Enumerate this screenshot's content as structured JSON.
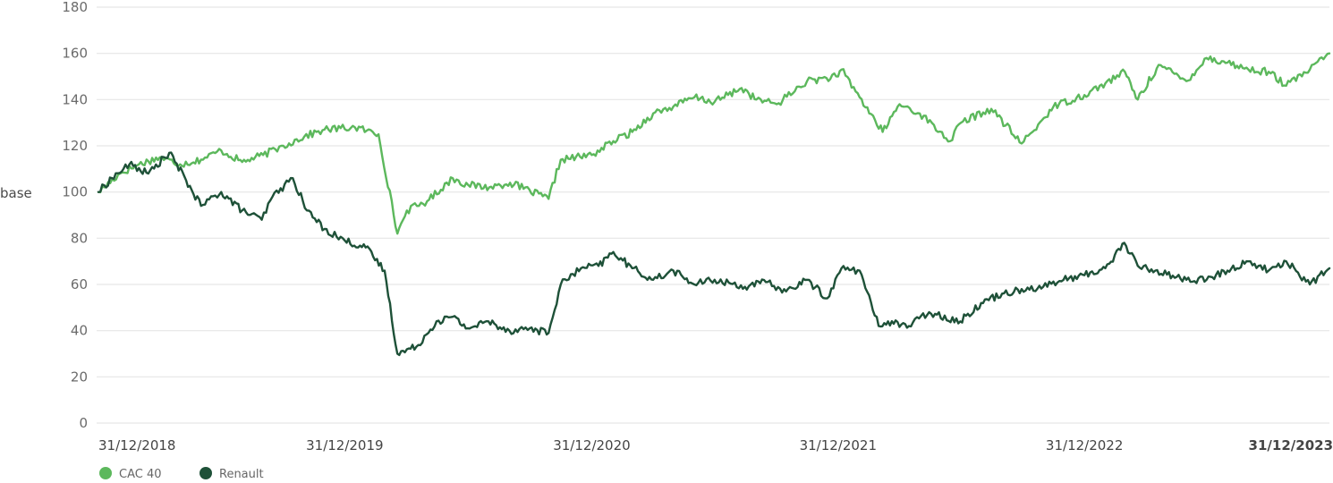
{
  "chart_data": {
    "type": "line",
    "ylabel": "base",
    "ylim": [
      0,
      180
    ],
    "yticks": [
      0,
      20,
      40,
      60,
      80,
      100,
      120,
      140,
      160,
      180
    ],
    "xticks": [
      "31/12/2018",
      "31/12/2019",
      "31/12/2020",
      "31/12/2021",
      "31/12/2022",
      "31/12/2023"
    ],
    "first_tick_color": "#7ac77a",
    "last_tick_bold": true,
    "grid": true,
    "legend_position": "bottom-left",
    "series": [
      {
        "name": "CAC 40",
        "color": "#5cb85c",
        "x": [
          "2018-12-31",
          "2019-02-01",
          "2019-03-01",
          "2019-04-01",
          "2019-05-01",
          "2019-06-01",
          "2019-07-01",
          "2019-08-01",
          "2019-09-01",
          "2019-10-01",
          "2019-11-01",
          "2019-12-01",
          "2020-01-15",
          "2020-02-19",
          "2020-03-18",
          "2020-04-01",
          "2020-05-01",
          "2020-06-08",
          "2020-07-01",
          "2020-08-01",
          "2020-09-01",
          "2020-10-28",
          "2020-11-15",
          "2020-12-31",
          "2021-02-01",
          "2021-03-01",
          "2021-04-01",
          "2021-05-01",
          "2021-06-01",
          "2021-07-01",
          "2021-08-10",
          "2021-09-01",
          "2021-10-01",
          "2021-11-15",
          "2021-12-31",
          "2022-01-05",
          "2022-02-01",
          "2022-03-07",
          "2022-04-01",
          "2022-05-01",
          "2022-06-15",
          "2022-07-01",
          "2022-08-15",
          "2022-09-29",
          "2022-10-15",
          "2022-11-15",
          "2022-12-31",
          "2023-01-31",
          "2023-03-01",
          "2023-03-20",
          "2023-04-20",
          "2023-05-31",
          "2023-06-30",
          "2023-07-31",
          "2023-08-31",
          "2023-09-30",
          "2023-10-26",
          "2023-11-30",
          "2023-12-29"
        ],
        "values": [
          100,
          108,
          112,
          115,
          112,
          114,
          118,
          113,
          116,
          120,
          124,
          127,
          128,
          125,
          82,
          92,
          96,
          106,
          103,
          102,
          104,
          97,
          114,
          116,
          122,
          126,
          134,
          137,
          141,
          139,
          145,
          140,
          138,
          148,
          150,
          153,
          141,
          126,
          138,
          134,
          122,
          130,
          136,
          121,
          126,
          137,
          142,
          147,
          152,
          140,
          155,
          148,
          158,
          156,
          153,
          152,
          146,
          153,
          160
        ]
      },
      {
        "name": "Renault",
        "color": "#1e5138",
        "x": [
          "2018-12-31",
          "2019-01-20",
          "2019-02-15",
          "2019-03-15",
          "2019-04-15",
          "2019-05-10",
          "2019-06-01",
          "2019-07-01",
          "2019-08-01",
          "2019-08-30",
          "2019-09-15",
          "2019-10-15",
          "2019-11-05",
          "2019-12-01",
          "2019-12-31",
          "2020-01-31",
          "2020-02-28",
          "2020-03-18",
          "2020-04-15",
          "2020-05-15",
          "2020-06-08",
          "2020-06-30",
          "2020-07-31",
          "2020-08-31",
          "2020-09-30",
          "2020-10-28",
          "2020-11-15",
          "2020-12-15",
          "2021-01-10",
          "2021-02-01",
          "2021-03-01",
          "2021-04-01",
          "2021-05-01",
          "2021-06-01",
          "2021-07-01",
          "2021-08-15",
          "2021-09-15",
          "2021-10-15",
          "2021-11-15",
          "2021-12-15",
          "2022-01-05",
          "2022-02-01",
          "2022-03-01",
          "2022-03-15",
          "2022-04-15",
          "2022-05-15",
          "2022-06-30",
          "2022-07-31",
          "2022-08-31",
          "2022-09-29",
          "2022-10-31",
          "2022-11-30",
          "2022-12-31",
          "2023-01-31",
          "2023-02-28",
          "2023-03-20",
          "2023-04-15",
          "2023-05-31",
          "2023-06-30",
          "2023-07-31",
          "2023-08-31",
          "2023-09-30",
          "2023-10-26",
          "2023-11-30",
          "2023-12-29"
        ],
        "values": [
          100,
          106,
          112,
          108,
          117,
          105,
          94,
          100,
          92,
          88,
          98,
          106,
          92,
          84,
          79,
          76,
          66,
          30,
          33,
          44,
          46,
          41,
          44,
          40,
          41,
          39,
          60,
          67,
          68,
          74,
          67,
          62,
          66,
          60,
          62,
          59,
          61,
          57,
          62,
          54,
          67,
          66,
          42,
          44,
          42,
          48,
          44,
          52,
          56,
          58,
          59,
          62,
          64,
          67,
          78,
          68,
          66,
          62,
          62,
          66,
          70,
          66,
          70,
          60,
          67
        ]
      }
    ]
  }
}
